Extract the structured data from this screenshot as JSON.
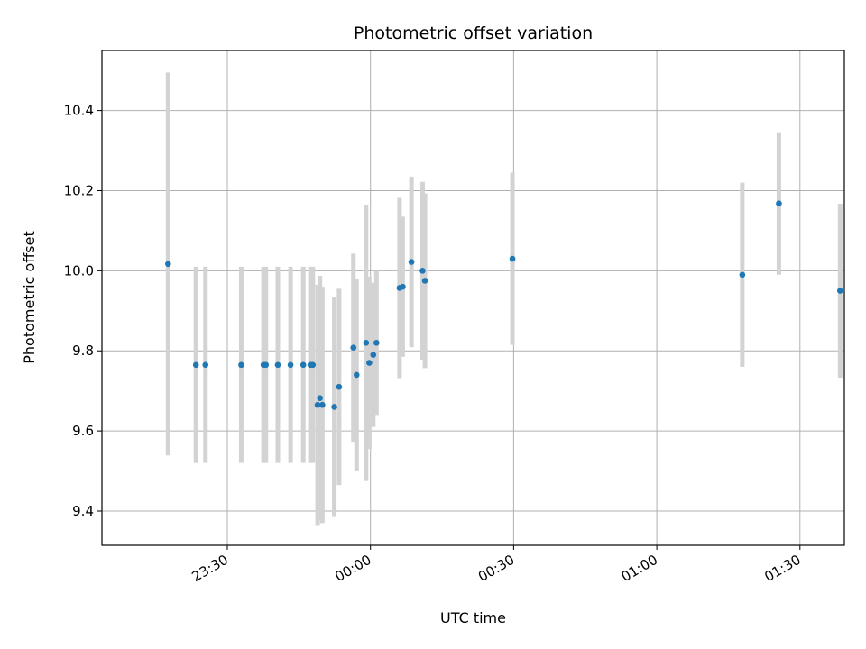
{
  "chart_data": {
    "type": "scatter",
    "title": "Photometric offset variation",
    "xlabel": "UTC time",
    "ylabel": "Photometric offset",
    "x_ticks": [
      "23:30",
      "00:00",
      "00:30",
      "01:00",
      "01:30"
    ],
    "y_ticks": [
      "9.4",
      "9.6",
      "9.8",
      "10.0",
      "10.2",
      "10.4"
    ],
    "grid": true,
    "colors": {
      "point": "#1f77b4",
      "errorbar": "#d3d3d3",
      "grid": "#b0b0b0"
    },
    "points": [
      {
        "t": "23:17:35",
        "y": 10.017,
        "err": 0.478
      },
      {
        "t": "23:23:25",
        "y": 9.765,
        "err": 0.245
      },
      {
        "t": "23:25:25",
        "y": 9.765,
        "err": 0.245
      },
      {
        "t": "23:32:55",
        "y": 9.765,
        "err": 0.245
      },
      {
        "t": "23:37:35",
        "y": 9.765,
        "err": 0.245
      },
      {
        "t": "23:38:05",
        "y": 9.765,
        "err": 0.245
      },
      {
        "t": "23:40:35",
        "y": 9.765,
        "err": 0.245
      },
      {
        "t": "23:43:15",
        "y": 9.765,
        "err": 0.245
      },
      {
        "t": "23:45:55",
        "y": 9.765,
        "err": 0.245
      },
      {
        "t": "23:47:25",
        "y": 9.765,
        "err": 0.245
      },
      {
        "t": "23:47:55",
        "y": 9.765,
        "err": 0.245
      },
      {
        "t": "23:48:55",
        "y": 9.665,
        "err": 0.3
      },
      {
        "t": "23:49:25",
        "y": 9.682,
        "err": 0.305
      },
      {
        "t": "23:49:55",
        "y": 9.665,
        "err": 0.295
      },
      {
        "t": "23:52:25",
        "y": 9.66,
        "err": 0.275
      },
      {
        "t": "23:53:25",
        "y": 9.71,
        "err": 0.245
      },
      {
        "t": "23:56:25",
        "y": 9.808,
        "err": 0.235
      },
      {
        "t": "23:57:05",
        "y": 9.74,
        "err": 0.24
      },
      {
        "t": "23:59:05",
        "y": 9.82,
        "err": 0.345
      },
      {
        "t": "23:59:45",
        "y": 9.77,
        "err": 0.215
      },
      {
        "t": "00:00:35",
        "y": 9.79,
        "err": 0.18
      },
      {
        "t": "00:01:15",
        "y": 9.82,
        "err": 0.18
      },
      {
        "t": "00:06:05",
        "y": 9.957,
        "err": 0.225
      },
      {
        "t": "00:06:45",
        "y": 9.96,
        "err": 0.175
      },
      {
        "t": "00:08:35",
        "y": 10.022,
        "err": 0.213
      },
      {
        "t": "00:10:55",
        "y": 10.0,
        "err": 0.222
      },
      {
        "t": "00:11:25",
        "y": 9.975,
        "err": 0.218
      },
      {
        "t": "00:29:45",
        "y": 10.03,
        "err": 0.215
      },
      {
        "t": "01:17:55",
        "y": 9.99,
        "err": 0.23
      },
      {
        "t": "01:25:35",
        "y": 10.168,
        "err": 0.178
      },
      {
        "t": "01:38:25",
        "y": 9.95,
        "err": 0.217
      }
    ]
  }
}
